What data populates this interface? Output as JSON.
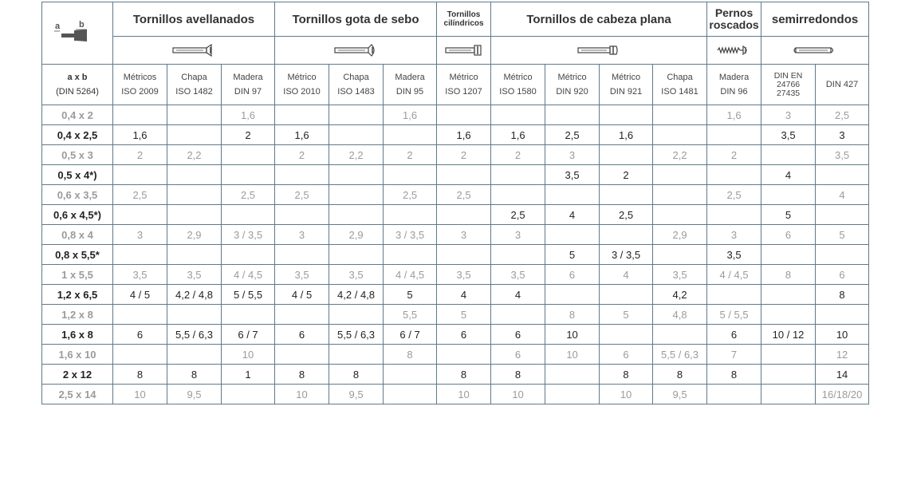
{
  "header": {
    "groups": [
      {
        "label": "Tornillos avellanados",
        "icon": "countersunk-screw-icon"
      },
      {
        "label": "Tornillos gota de sebo",
        "icon": "raised-countersunk-screw-icon"
      },
      {
        "label": "Tornillos cilíndricos",
        "icon": "cheese-head-screw-icon"
      },
      {
        "label": "Tornillos de cabeza plana",
        "icon": "pan-head-screw-icon"
      },
      {
        "label": "Pernos roscados",
        "icon": "threaded-pin-icon"
      },
      {
        "label": "semirredondos",
        "icon": "round-head-rivet-icon"
      }
    ],
    "size_col": {
      "diagram_icon": "rivet-dimension-a-b-icon",
      "diagram_a": "a",
      "diagram_b": "b",
      "label": "a x b",
      "standard": "(DIN 5264)"
    },
    "columns": [
      {
        "type": "Métricos",
        "standard": "ISO 2009"
      },
      {
        "type": "Chapa",
        "standard": "ISO 1482"
      },
      {
        "type": "Madera",
        "standard": "DIN 97"
      },
      {
        "type": "Métrico",
        "standard": "ISO 2010"
      },
      {
        "type": "Chapa",
        "standard": "ISO 1483"
      },
      {
        "type": "Madera",
        "standard": "DIN 95"
      },
      {
        "type": "Métrico",
        "standard": "ISO 1207"
      },
      {
        "type": "Métrico",
        "standard": "ISO 1580"
      },
      {
        "type": "Métrico",
        "standard": "DIN 920"
      },
      {
        "type": "Métrico",
        "standard": "DIN 921"
      },
      {
        "type": "Chapa",
        "standard": "ISO 1481"
      },
      {
        "type": "Madera",
        "standard": "DIN 96"
      },
      {
        "type": "DIN EN",
        "standard": "24766",
        "extra": "27435"
      },
      {
        "type": "",
        "standard": "DIN 427"
      }
    ]
  },
  "rows": [
    {
      "size": "0,4 x 2",
      "style": "light",
      "cells": [
        "",
        "",
        "1,6",
        "",
        "",
        "1,6",
        "",
        "",
        "",
        "",
        "",
        "1,6",
        "3",
        "2,5"
      ]
    },
    {
      "size": "0,4 x 2,5",
      "style": "dark",
      "cells": [
        "1,6",
        "",
        "2",
        "1,6",
        "",
        "",
        "1,6",
        "1,6",
        "2,5",
        "1,6",
        "",
        "",
        "3,5",
        "3"
      ]
    },
    {
      "size": "0,5 x 3",
      "style": "light",
      "cells": [
        "2",
        "2,2",
        "",
        "2",
        "2,2",
        "2",
        "2",
        "2",
        "3",
        "",
        "2,2",
        "2",
        "",
        "3,5"
      ]
    },
    {
      "size": "0,5 x 4*)",
      "style": "dark",
      "cells": [
        "",
        "",
        "",
        "",
        "",
        "",
        "",
        "",
        "3,5",
        "2",
        "",
        "",
        "4",
        ""
      ]
    },
    {
      "size": "0,6 x 3,5",
      "style": "light",
      "cells": [
        "2,5",
        "",
        "2,5",
        "2,5",
        "",
        "2,5",
        "2,5",
        "",
        "",
        "",
        "",
        "2,5",
        "",
        "4"
      ]
    },
    {
      "size": "0,6 x 4,5*)",
      "style": "dark",
      "cells": [
        "",
        "",
        "",
        "",
        "",
        "",
        "",
        "2,5",
        "4",
        "2,5",
        "",
        "",
        "5",
        ""
      ]
    },
    {
      "size": "0,8 x 4",
      "style": "light",
      "cells": [
        "3",
        "2,9",
        "3 / 3,5",
        "3",
        "2,9",
        "3 / 3,5",
        "3",
        "3",
        "",
        "",
        "2,9",
        "3",
        "6",
        "5"
      ]
    },
    {
      "size": "0,8 x 5,5*",
      "style": "dark",
      "cells": [
        "",
        "",
        "",
        "",
        "",
        "",
        "",
        "",
        "5",
        "3 / 3,5",
        "",
        "3,5",
        "",
        ""
      ]
    },
    {
      "size": "1 x 5,5",
      "style": "light",
      "cells": [
        "3,5",
        "3,5",
        "4 / 4,5",
        "3,5",
        "3,5",
        "4 / 4,5",
        "3,5",
        "3,5",
        "6",
        "4",
        "3,5",
        "4 / 4,5",
        "8",
        "6"
      ]
    },
    {
      "size": "1,2 x 6,5",
      "style": "dark",
      "cells": [
        "4 / 5",
        "4,2 / 4,8",
        "5 / 5,5",
        "4 / 5",
        "4,2 / 4,8",
        "5",
        "4",
        "4",
        "",
        "",
        "4,2",
        "",
        "",
        "8"
      ]
    },
    {
      "size": "1,2 x 8",
      "style": "light",
      "cells": [
        "",
        "",
        "",
        "",
        "",
        "5,5",
        "5",
        "",
        "8",
        "5",
        "4,8",
        "5 / 5,5",
        "",
        ""
      ]
    },
    {
      "size": "1,6 x 8",
      "style": "dark",
      "cells": [
        "6",
        "5,5 / 6,3",
        "6 / 7",
        "6",
        "5,5 / 6,3",
        "6 / 7",
        "6",
        "6",
        "10",
        "",
        "",
        "6",
        "10 / 12",
        "10"
      ]
    },
    {
      "size": "1,6 x 10",
      "style": "light",
      "cells": [
        "",
        "",
        "10",
        "",
        "",
        "8",
        "",
        "6",
        "10",
        "6",
        "5,5 / 6,3",
        "7",
        "",
        "12"
      ]
    },
    {
      "size": "2 x 12",
      "style": "dark",
      "cells": [
        "8",
        "8",
        "1",
        "8",
        "8",
        "",
        "8",
        "8",
        "",
        "8",
        "8",
        "8",
        "",
        "14"
      ]
    },
    {
      "size": "2,5 x 14",
      "style": "light",
      "cells": [
        "10",
        "9,5",
        "",
        "10",
        "9,5",
        "",
        "10",
        "10",
        "",
        "10",
        "9,5",
        "",
        "",
        "16/18/20"
      ]
    }
  ],
  "colors": {
    "border": "#5f7a8a",
    "text_dark": "#222222",
    "text_light": "#9b9b9b",
    "diagram_fill": "#555555"
  }
}
